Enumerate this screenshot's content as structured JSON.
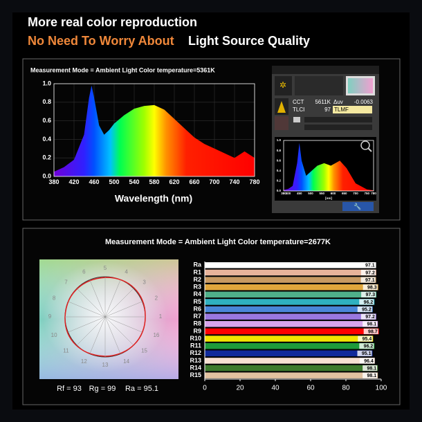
{
  "header": {
    "title": "More real color reproduction",
    "subtitle_accent": "No Need To Worry About",
    "subtitle_rest": "Light Source Quality"
  },
  "chart_data": [
    {
      "type": "area",
      "title": "Measurement Mode = Ambient Light    Color temperature=5361K",
      "x": [
        380,
        400,
        420,
        440,
        450,
        455,
        460,
        470,
        480,
        490,
        500,
        520,
        540,
        560,
        580,
        600,
        620,
        640,
        660,
        680,
        700,
        720,
        740,
        760,
        780
      ],
      "values": [
        0.05,
        0.1,
        0.18,
        0.45,
        0.85,
        0.98,
        0.85,
        0.55,
        0.45,
        0.5,
        0.57,
        0.66,
        0.73,
        0.76,
        0.77,
        0.72,
        0.62,
        0.52,
        0.42,
        0.35,
        0.3,
        0.25,
        0.2,
        0.27,
        0.2
      ],
      "xlim": [
        380,
        780
      ],
      "ylim": [
        0,
        1
      ],
      "xticks": [
        380,
        420,
        460,
        500,
        540,
        580,
        620,
        660,
        700,
        740,
        780
      ],
      "yticks": [
        {
          "value": 0,
          "label": "0.0"
        },
        0.2,
        0.4,
        0.6,
        0.8,
        {
          "value": 1,
          "label": "1.0"
        }
      ],
      "xlabel": "Wavelength (nm)",
      "grid": true
    },
    {
      "type": "area",
      "x": [
        380,
        400,
        420,
        440,
        450,
        460,
        480,
        500,
        530,
        560,
        590,
        630,
        660,
        700,
        750,
        780
      ],
      "values": [
        0.02,
        0.04,
        0.1,
        0.55,
        0.95,
        0.6,
        0.3,
        0.38,
        0.5,
        0.55,
        0.5,
        0.6,
        0.45,
        0.15,
        0.03,
        0.01
      ],
      "xlim": [
        380,
        780
      ],
      "ylim": [
        0,
        1
      ],
      "xticks": [
        380,
        400,
        450,
        500,
        550,
        600,
        650,
        700,
        750,
        780
      ],
      "yticks": [
        {
          "value": 0,
          "label": "0.0"
        },
        0.2,
        0.4,
        0.6,
        0.8,
        {
          "value": 1,
          "label": "1.0"
        }
      ],
      "xlabel": "[nm]",
      "grid": false
    },
    {
      "type": "hbar",
      "title": "Measurement Mode = Ambient Light   Color temperature=2677K",
      "categories": [
        "Ra",
        "R1",
        "R2",
        "R3",
        "R4",
        "R5",
        "R6",
        "R7",
        "R8",
        "R9",
        "R10",
        "R11",
        "R12",
        "R13",
        "R14",
        "R15"
      ],
      "values": [
        97.1,
        97.2,
        97.1,
        98.3,
        97.3,
        96.2,
        95.2,
        97.2,
        98.1,
        98.7,
        95.4,
        96.2,
        95.1,
        96.4,
        98.1,
        98.1
      ],
      "colors": [
        "#ffffff",
        "#e8b39a",
        "#c89a62",
        "#e0a63c",
        "#4fb08a",
        "#2fb0c0",
        "#4a86d8",
        "#9a78e0",
        "#d8a4ec",
        "#ff0000",
        "#f2e400",
        "#1e9a3a",
        "#102a9a",
        "#f6e0d2",
        "#3c7a2c",
        "#e2c2a0"
      ],
      "xlim": [
        0,
        100
      ],
      "xticks": [
        0,
        20,
        40,
        60,
        80,
        100
      ]
    }
  ],
  "device": {
    "cct_label": "CCT",
    "cct_value": "5611K",
    "duv_label": "Δuv",
    "duv_value": "-0.0063",
    "tlci_label": "TLCI",
    "tlci_value": "97",
    "tlmf_label": "TLMF"
  },
  "tm30": {
    "hue_labels": [
      "1",
      "2",
      "3",
      "4",
      "5",
      "6",
      "7",
      "8",
      "9",
      "10",
      "11",
      "12",
      "13",
      "14",
      "15",
      "16"
    ],
    "metrics": [
      "Rf = 93",
      "Rg = 99",
      "Ra = 95.1"
    ]
  }
}
